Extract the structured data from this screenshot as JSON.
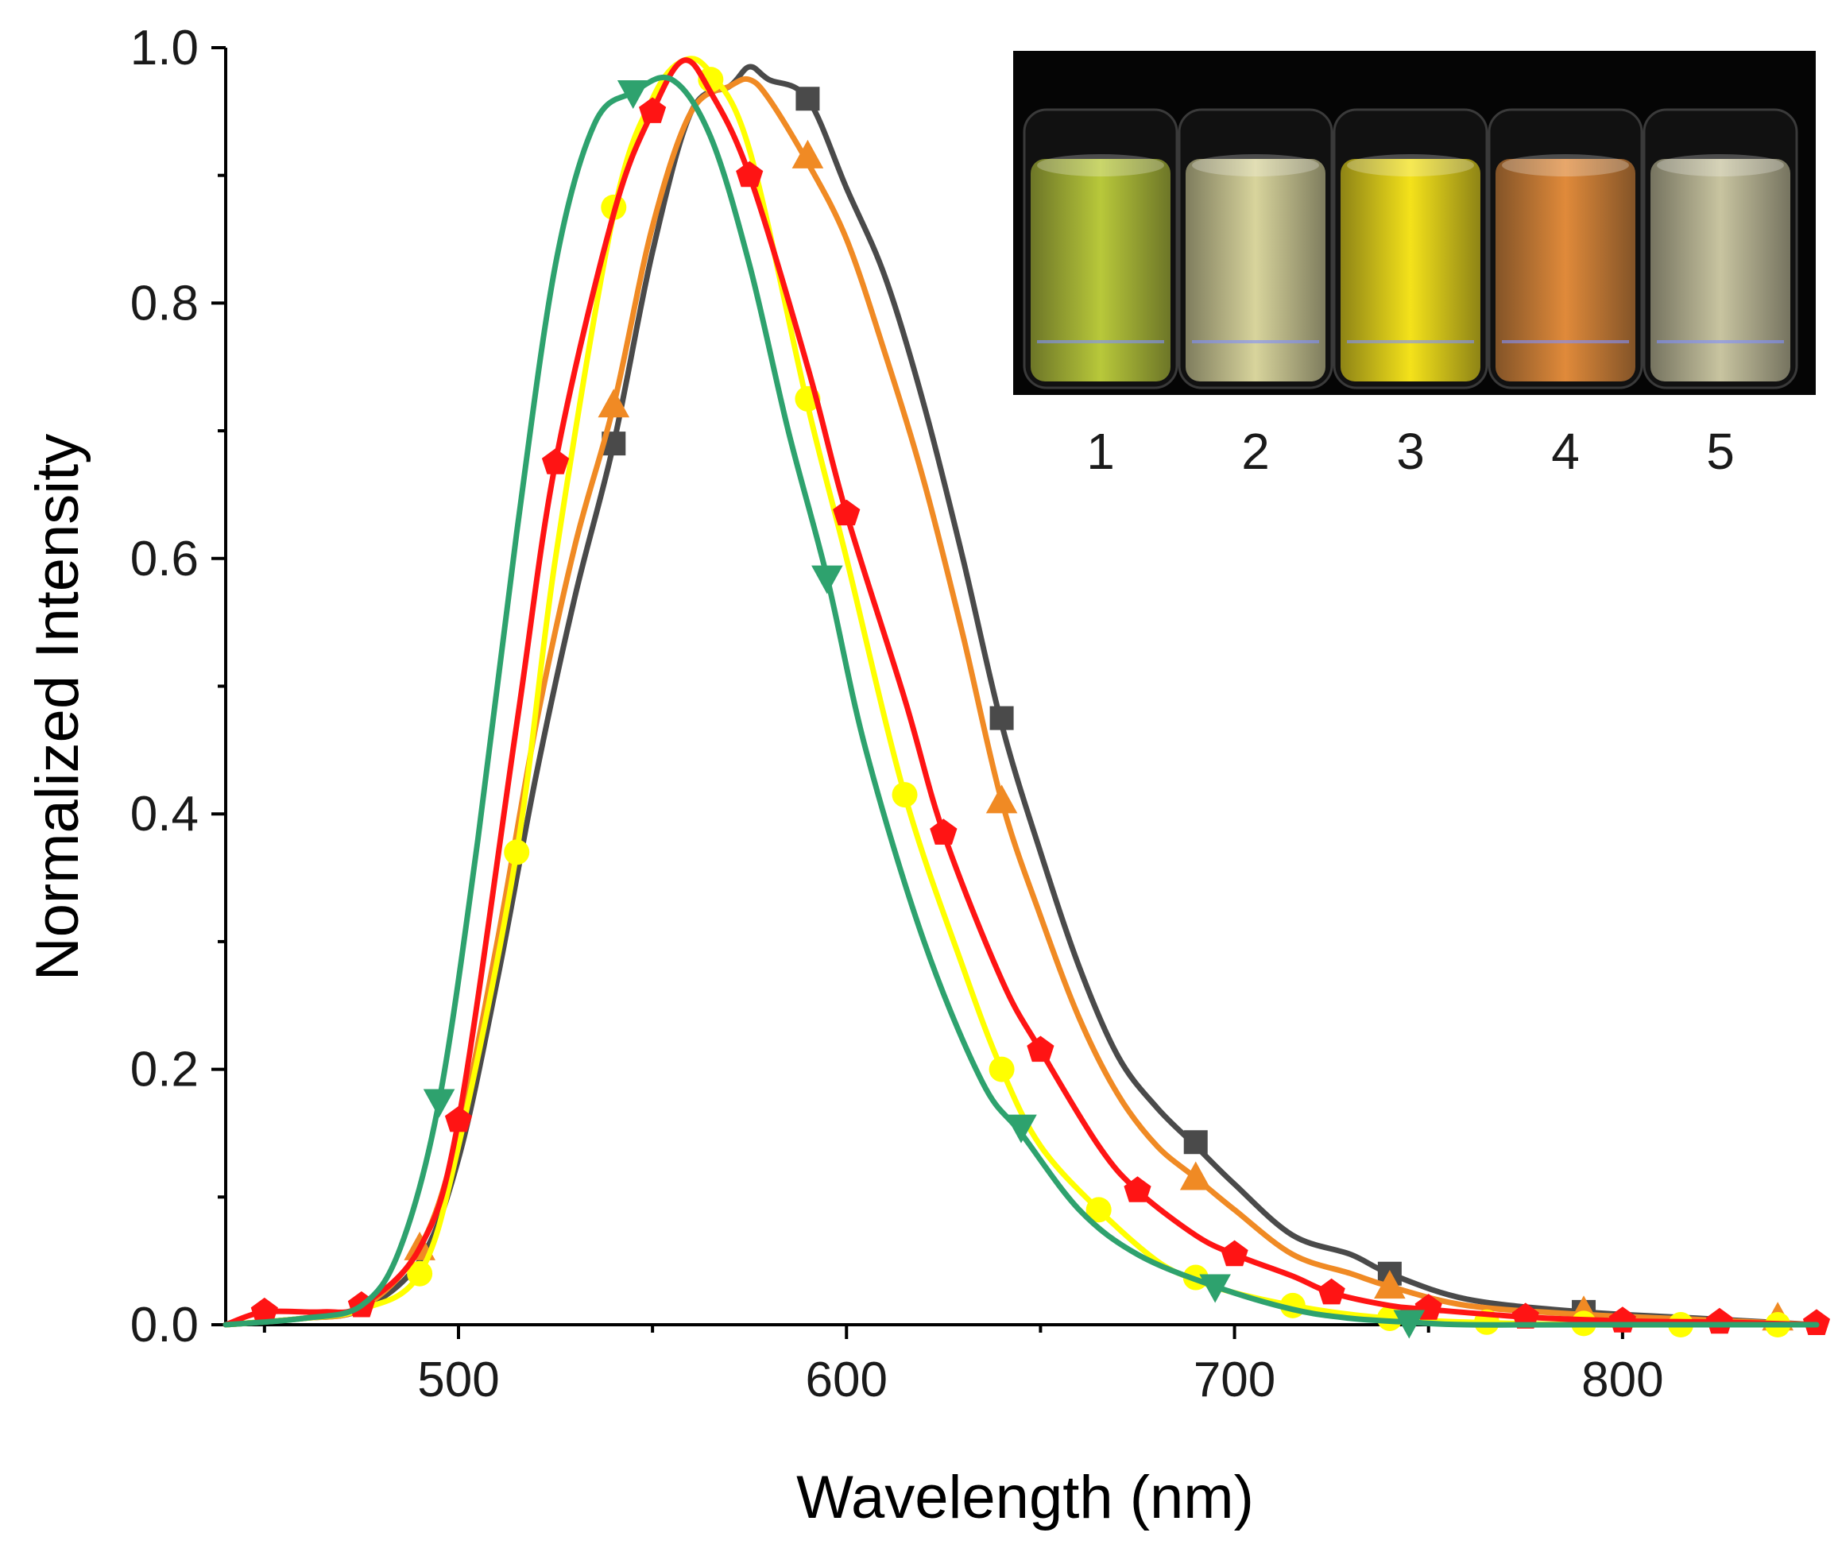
{
  "chart_data": {
    "type": "line",
    "title": "",
    "xlabel": "Wavelength (nm)",
    "ylabel": "Normalized Intensity",
    "xlim": [
      440,
      850
    ],
    "ylim": [
      0.0,
      1.0
    ],
    "x_ticks": [
      500,
      600,
      700,
      800
    ],
    "y_ticks": [
      0.0,
      0.2,
      0.4,
      0.6,
      0.8,
      1.0
    ],
    "x_tick_labels": [
      "500",
      "600",
      "700",
      "800"
    ],
    "y_tick_labels": [
      "0.0",
      "0.2",
      "0.4",
      "0.6",
      "0.8",
      "1.0"
    ],
    "grid": false,
    "legend": "none",
    "series": [
      {
        "name": "gray",
        "color": "#4a4a4a",
        "marker": "square",
        "x": [
          440,
          460,
          475,
          490,
          500,
          510,
          520,
          530,
          540,
          550,
          560,
          570,
          575,
          580,
          590,
          600,
          610,
          620,
          630,
          640,
          650,
          660,
          670,
          680,
          690,
          700,
          715,
          730,
          740,
          760,
          790,
          820,
          850
        ],
        "y": [
          0.0,
          0.005,
          0.012,
          0.05,
          0.13,
          0.27,
          0.43,
          0.57,
          0.69,
          0.84,
          0.95,
          0.97,
          0.985,
          0.975,
          0.96,
          0.89,
          0.82,
          0.72,
          0.6,
          0.47,
          0.37,
          0.28,
          0.21,
          0.17,
          0.14,
          0.11,
          0.07,
          0.055,
          0.04,
          0.02,
          0.01,
          0.005,
          0.0
        ],
        "marker_x": [
          540,
          590,
          640,
          690,
          740,
          790
        ],
        "marker_y": [
          0.69,
          0.96,
          0.475,
          0.143,
          0.04,
          0.01
        ]
      },
      {
        "name": "orange",
        "color": "#f08a24",
        "marker": "triangle-up",
        "x": [
          440,
          460,
          475,
          490,
          500,
          510,
          520,
          530,
          540,
          550,
          560,
          570,
          575,
          580,
          590,
          600,
          610,
          620,
          630,
          640,
          650,
          660,
          670,
          680,
          690,
          700,
          715,
          730,
          740,
          760,
          790,
          820,
          850
        ],
        "y": [
          0.0,
          0.005,
          0.013,
          0.06,
          0.15,
          0.3,
          0.47,
          0.61,
          0.72,
          0.86,
          0.95,
          0.97,
          0.975,
          0.96,
          0.91,
          0.85,
          0.76,
          0.66,
          0.54,
          0.41,
          0.32,
          0.24,
          0.18,
          0.14,
          0.115,
          0.09,
          0.055,
          0.04,
          0.03,
          0.015,
          0.008,
          0.004,
          0.0
        ],
        "marker_x": [
          490,
          540,
          590,
          640,
          690,
          740,
          790,
          840
        ],
        "marker_y": [
          0.06,
          0.72,
          0.915,
          0.41,
          0.115,
          0.03,
          0.01,
          0.005
        ]
      },
      {
        "name": "yellow",
        "color": "#ffff00",
        "marker": "circle",
        "x": [
          440,
          460,
          475,
          490,
          500,
          515,
          525,
          540,
          550,
          558,
          565,
          575,
          590,
          600,
          615,
          630,
          640,
          650,
          665,
          680,
          690,
          700,
          715,
          730,
          745,
          760,
          790,
          815,
          850
        ],
        "y": [
          0.0,
          0.005,
          0.012,
          0.04,
          0.14,
          0.37,
          0.6,
          0.87,
          0.96,
          0.99,
          0.98,
          0.92,
          0.72,
          0.6,
          0.415,
          0.28,
          0.2,
          0.14,
          0.09,
          0.05,
          0.035,
          0.025,
          0.015,
          0.008,
          0.004,
          0.002,
          0.0,
          0.0,
          0.0
        ],
        "marker_x": [
          490,
          515,
          540,
          565,
          590,
          615,
          640,
          665,
          690,
          715,
          740,
          765,
          790,
          815,
          840
        ],
        "marker_y": [
          0.04,
          0.37,
          0.875,
          0.975,
          0.725,
          0.415,
          0.2,
          0.09,
          0.037,
          0.015,
          0.005,
          0.002,
          0.001,
          0.0,
          0.0
        ]
      },
      {
        "name": "red",
        "color": "#ff1414",
        "marker": "pentagon",
        "x": [
          440,
          450,
          465,
          475,
          490,
          500,
          515,
          525,
          540,
          550,
          558,
          565,
          575,
          590,
          600,
          615,
          625,
          640,
          650,
          665,
          675,
          690,
          700,
          715,
          725,
          740,
          750,
          775,
          800,
          825,
          850
        ],
        "y": [
          0.0,
          0.01,
          0.01,
          0.015,
          0.06,
          0.16,
          0.47,
          0.675,
          0.87,
          0.95,
          0.99,
          0.965,
          0.9,
          0.75,
          0.635,
          0.49,
          0.385,
          0.27,
          0.215,
          0.14,
          0.105,
          0.07,
          0.055,
          0.038,
          0.025,
          0.015,
          0.012,
          0.006,
          0.003,
          0.002,
          0.0
        ],
        "marker_x": [
          450,
          475,
          500,
          525,
          550,
          575,
          600,
          625,
          650,
          675,
          700,
          725,
          750,
          775,
          800,
          825,
          850
        ],
        "marker_y": [
          0.01,
          0.015,
          0.16,
          0.675,
          0.95,
          0.9,
          0.635,
          0.385,
          0.215,
          0.105,
          0.055,
          0.025,
          0.013,
          0.006,
          0.003,
          0.002,
          0.001
        ]
      },
      {
        "name": "green",
        "color": "#2ea26e",
        "marker": "triangle-down",
        "x": [
          440,
          460,
          475,
          485,
          495,
          505,
          515,
          525,
          535,
          545,
          555,
          565,
          575,
          585,
          595,
          605,
          620,
          635,
          645,
          660,
          675,
          695,
          715,
          730,
          745,
          760,
          790,
          850
        ],
        "y": [
          0.0,
          0.005,
          0.015,
          0.06,
          0.175,
          0.38,
          0.62,
          0.83,
          0.94,
          0.965,
          0.975,
          0.93,
          0.83,
          0.7,
          0.585,
          0.45,
          0.3,
          0.19,
          0.15,
          0.09,
          0.055,
          0.03,
          0.012,
          0.005,
          0.002,
          0.0,
          0.0,
          0.0
        ],
        "marker_x": [
          495,
          545,
          595,
          645,
          695,
          745
        ],
        "marker_y": [
          0.175,
          0.965,
          0.585,
          0.155,
          0.03,
          0.002
        ]
      }
    ]
  },
  "inset": {
    "description_labels": [
      "1",
      "2",
      "3",
      "4",
      "5"
    ],
    "vial_colors": [
      "#b8c83a",
      "#d8d49c",
      "#f4e21a",
      "#e08a3a",
      "#c8c4a0"
    ]
  }
}
